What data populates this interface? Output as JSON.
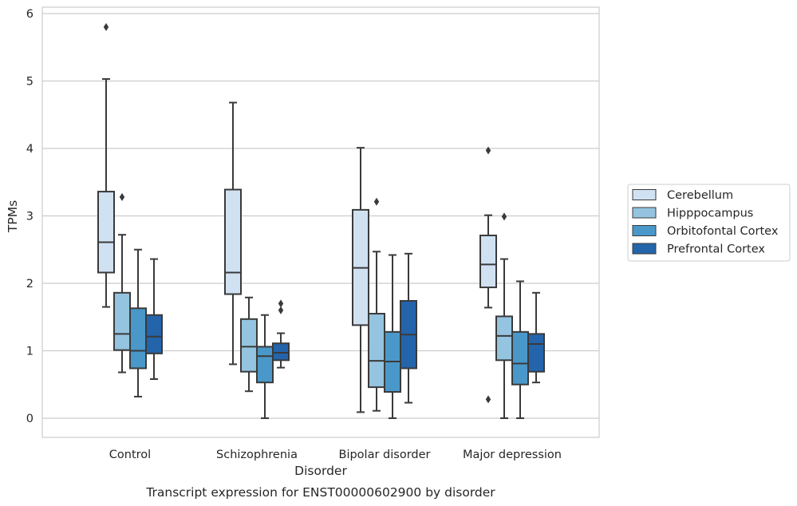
{
  "chart_data": {
    "type": "box",
    "title": "",
    "caption": "Transcript expression for ENST00000602900 by disorder",
    "xlabel": "Disorder",
    "ylabel": "TPMs",
    "ylim": [
      -0.28,
      6.1
    ],
    "yticks": [
      0,
      1,
      2,
      3,
      4,
      5,
      6
    ],
    "grid": "horizontal",
    "legend_position": "right",
    "categories": [
      "Control",
      "Schizophrenia",
      "Bipolar disorder",
      "Major depression"
    ],
    "series": [
      {
        "name": "Cerebellum",
        "color": "#d0e1f2",
        "boxes": [
          {
            "whisker_low": 1.65,
            "q1": 2.16,
            "median": 2.61,
            "q3": 3.36,
            "whisker_high": 5.03,
            "outliers": [
              5.8
            ]
          },
          {
            "whisker_low": 0.8,
            "q1": 1.84,
            "median": 2.16,
            "q3": 3.39,
            "whisker_high": 4.68,
            "outliers": []
          },
          {
            "whisker_low": 0.09,
            "q1": 1.38,
            "median": 2.23,
            "q3": 3.09,
            "whisker_high": 4.01,
            "outliers": []
          },
          {
            "whisker_low": 1.64,
            "q1": 1.94,
            "median": 2.28,
            "q3": 2.71,
            "whisker_high": 3.01,
            "outliers": [
              3.97,
              0.28
            ]
          }
        ]
      },
      {
        "name": "Hipppocampus",
        "color": "#94c4df",
        "boxes": [
          {
            "whisker_low": 0.68,
            "q1": 1.01,
            "median": 1.25,
            "q3": 1.86,
            "whisker_high": 2.72,
            "outliers": [
              3.28
            ]
          },
          {
            "whisker_low": 0.4,
            "q1": 0.69,
            "median": 1.06,
            "q3": 1.47,
            "whisker_high": 1.79,
            "outliers": []
          },
          {
            "whisker_low": 0.11,
            "q1": 0.46,
            "median": 0.85,
            "q3": 1.55,
            "whisker_high": 2.47,
            "outliers": [
              3.21
            ]
          },
          {
            "whisker_low": 0.0,
            "q1": 0.86,
            "median": 1.22,
            "q3": 1.51,
            "whisker_high": 2.36,
            "outliers": [
              2.99
            ]
          }
        ]
      },
      {
        "name": "Orbitofontal Cortex",
        "color": "#4a98c9",
        "boxes": [
          {
            "whisker_low": 0.32,
            "q1": 0.74,
            "median": 1.0,
            "q3": 1.63,
            "whisker_high": 2.5,
            "outliers": []
          },
          {
            "whisker_low": 0.0,
            "q1": 0.53,
            "median": 0.92,
            "q3": 1.06,
            "whisker_high": 1.53,
            "outliers": []
          },
          {
            "whisker_low": 0.0,
            "q1": 0.39,
            "median": 0.84,
            "q3": 1.28,
            "whisker_high": 2.42,
            "outliers": []
          },
          {
            "whisker_low": 0.0,
            "q1": 0.5,
            "median": 0.81,
            "q3": 1.28,
            "whisker_high": 2.03,
            "outliers": []
          }
        ]
      },
      {
        "name": "Prefrontal Cortex",
        "color": "#2464ab",
        "boxes": [
          {
            "whisker_low": 0.58,
            "q1": 0.96,
            "median": 1.21,
            "q3": 1.53,
            "whisker_high": 2.36,
            "outliers": []
          },
          {
            "whisker_low": 0.75,
            "q1": 0.86,
            "median": 0.97,
            "q3": 1.11,
            "whisker_high": 1.26,
            "outliers": [
              1.6,
              1.7
            ]
          },
          {
            "whisker_low": 0.23,
            "q1": 0.74,
            "median": 1.24,
            "q3": 1.74,
            "whisker_high": 2.44,
            "outliers": []
          },
          {
            "whisker_low": 0.53,
            "q1": 0.69,
            "median": 1.1,
            "q3": 1.25,
            "whisker_high": 1.86,
            "outliers": []
          }
        ]
      }
    ]
  }
}
